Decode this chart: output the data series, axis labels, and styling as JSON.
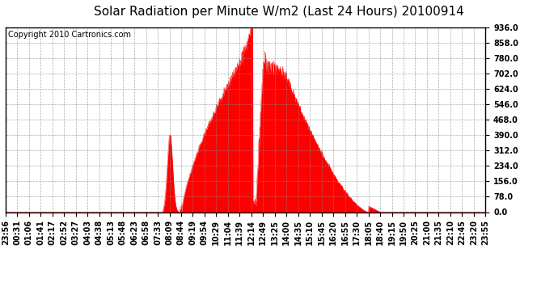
{
  "title": "Solar Radiation per Minute W/m2 (Last 24 Hours) 20100914",
  "copyright": "Copyright 2010 Cartronics.com",
  "y_ticks": [
    0.0,
    78.0,
    156.0,
    234.0,
    312.0,
    390.0,
    468.0,
    546.0,
    624.0,
    702.0,
    780.0,
    858.0,
    936.0
  ],
  "ylim": [
    0,
    936
  ],
  "fill_color": "#ff0000",
  "line_color": "#ff0000",
  "bg_color": "#ffffff",
  "plot_bg_color": "#ffffff",
  "grid_color": "#888888",
  "dashed_line_color": "#ff0000",
  "title_fontsize": 11,
  "copyright_fontsize": 7,
  "tick_fontsize": 7,
  "x_labels": [
    "23:56",
    "00:31",
    "01:06",
    "01:41",
    "02:17",
    "02:52",
    "03:27",
    "04:03",
    "04:38",
    "05:13",
    "05:48",
    "06:23",
    "06:58",
    "07:33",
    "08:09",
    "08:44",
    "09:19",
    "09:54",
    "10:29",
    "11:04",
    "11:39",
    "12:14",
    "12:49",
    "13:25",
    "14:00",
    "14:35",
    "15:10",
    "15:45",
    "16:20",
    "16:55",
    "17:30",
    "18:05",
    "18:40",
    "19:15",
    "19:50",
    "20:25",
    "21:00",
    "21:35",
    "22:10",
    "22:45",
    "23:20",
    "23:55"
  ],
  "n_points": 1440
}
